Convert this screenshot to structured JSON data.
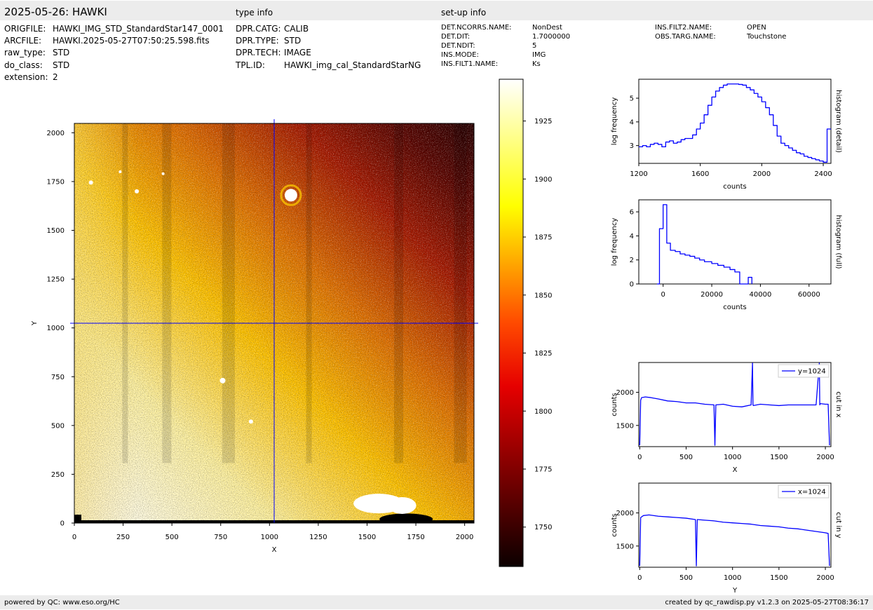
{
  "header": {
    "title": "2025-05-26: HAWKI",
    "type_info_label": "type info",
    "setup_info_label": "set-up info"
  },
  "file_info": [
    {
      "key": "ORIGFILE:",
      "value": "HAWKI_IMG_STD_StandardStar147_0001"
    },
    {
      "key": "ARCFILE:",
      "value": "HAWKI.2025-05-27T07:50:25.598.fits"
    },
    {
      "key": "raw_type:",
      "value": "STD"
    },
    {
      "key": "do_class:",
      "value": "STD"
    },
    {
      "key": "extension:",
      "value": "2"
    }
  ],
  "type_info": [
    {
      "key": "DPR.CATG:",
      "value": "CALIB"
    },
    {
      "key": "DPR.TYPE:",
      "value": "STD"
    },
    {
      "key": "DPR.TECH:",
      "value": "IMAGE"
    },
    {
      "key": "TPL.ID:",
      "value": "HAWKI_img_cal_StandardStarNG"
    }
  ],
  "setup_info_col1": [
    {
      "key": "DET.NCORRS.NAME:",
      "value": "NonDest"
    },
    {
      "key": "DET.DIT:",
      "value": "1.7000000"
    },
    {
      "key": "DET.NDIT:",
      "value": "5"
    },
    {
      "key": "INS.MODE:",
      "value": "IMG"
    },
    {
      "key": "INS.FILT1.NAME:",
      "value": "Ks"
    }
  ],
  "setup_info_col2": [
    {
      "key": "INS.FILT2.NAME:",
      "value": "OPEN"
    },
    {
      "key": "OBS.TARG.NAME:",
      "value": "Touchstone"
    }
  ],
  "footer": {
    "left": "powered by QC: www.eso.org/HC",
    "right": "created by qc_rawdisp.py v1.2.3 on 2025-05-27T08:36:17"
  },
  "chart_data": [
    {
      "type": "heatmap",
      "xlabel": "X",
      "ylabel": "Y",
      "xlim": [
        0,
        2048
      ],
      "ylim": [
        0,
        2048
      ],
      "xticks": [
        0,
        250,
        500,
        750,
        1000,
        1250,
        1500,
        1750,
        2000
      ],
      "yticks": [
        0,
        250,
        500,
        750,
        1000,
        1250,
        1500,
        1750,
        2000
      ],
      "crosshair": {
        "x": 1024,
        "y": 1024
      },
      "colormap": "hot",
      "color_range": [
        1733,
        1943
      ],
      "colorbar_ticks": [
        1750,
        1775,
        1800,
        1825,
        1850,
        1875,
        1900,
        1925
      ]
    },
    {
      "type": "line",
      "style": "step",
      "right_label": "histogram (detail)",
      "xlabel": "counts",
      "ylabel": "log frequency",
      "xlim": [
        1200,
        2450
      ],
      "ylim": [
        2.25,
        5.8
      ],
      "xticks": [
        1200,
        1600,
        2000,
        2400
      ],
      "yticks": [
        3,
        4,
        5
      ],
      "series": [
        {
          "color": "#0000ff",
          "x": [
            1200,
            1225,
            1250,
            1275,
            1300,
            1325,
            1350,
            1375,
            1400,
            1425,
            1450,
            1475,
            1500,
            1525,
            1550,
            1575,
            1600,
            1625,
            1650,
            1675,
            1700,
            1725,
            1750,
            1775,
            1800,
            1825,
            1850,
            1875,
            1900,
            1925,
            1950,
            1975,
            2000,
            2025,
            2050,
            2075,
            2100,
            2125,
            2150,
            2175,
            2200,
            2225,
            2250,
            2275,
            2300,
            2325,
            2350,
            2375,
            2400,
            2425,
            2450
          ],
          "y": [
            2.95,
            3.0,
            2.95,
            3.05,
            3.1,
            3.05,
            2.95,
            3.15,
            3.2,
            3.1,
            3.15,
            3.25,
            3.3,
            3.3,
            3.45,
            3.7,
            3.95,
            4.3,
            4.7,
            5.05,
            5.3,
            5.45,
            5.55,
            5.6,
            5.6,
            5.6,
            5.58,
            5.55,
            5.45,
            5.35,
            5.2,
            5.05,
            4.85,
            4.6,
            4.3,
            3.85,
            3.4,
            3.1,
            3.0,
            2.9,
            2.8,
            2.7,
            2.65,
            2.55,
            2.5,
            2.45,
            2.4,
            2.35,
            2.3,
            3.7,
            3.7
          ]
        }
      ]
    },
    {
      "type": "line",
      "style": "step",
      "right_label": "histogram (full)",
      "xlabel": "counts",
      "ylabel": "log frequency",
      "xlim": [
        -10000,
        69000
      ],
      "ylim": [
        0,
        7
      ],
      "xticks": [
        0,
        20000,
        40000,
        60000
      ],
      "yticks": [
        0,
        2,
        4,
        6
      ],
      "series": [
        {
          "color": "#0000ff",
          "x": [
            -2500,
            -1500,
            0,
            1500,
            3000,
            5000,
            7000,
            9000,
            11000,
            13000,
            15000,
            17000,
            20000,
            22500,
            25000,
            27500,
            29500,
            31500,
            35000,
            36500
          ],
          "y": [
            0,
            4.6,
            6.6,
            3.4,
            2.8,
            2.7,
            2.5,
            2.4,
            2.3,
            2.15,
            2.0,
            1.85,
            1.7,
            1.55,
            1.4,
            1.2,
            1.0,
            0,
            0.55,
            0
          ]
        }
      ]
    },
    {
      "type": "line",
      "right_label": "cut in x",
      "xlabel": "X",
      "ylabel": "counts",
      "xlim": [
        -10,
        2060
      ],
      "ylim": [
        1180,
        2450
      ],
      "xticks": [
        0,
        500,
        1000,
        1500,
        2000
      ],
      "yticks": [
        1500,
        2000
      ],
      "legend": "y=1024",
      "legend_position": "top-right",
      "series": [
        {
          "name": "y=1024",
          "color": "#0000ff",
          "x": [
            0,
            10,
            20,
            60,
            120,
            200,
            300,
            400,
            500,
            600,
            700,
            800,
            810,
            820,
            900,
            1000,
            1100,
            1200,
            1215,
            1220,
            1225,
            1300,
            1400,
            1500,
            1600,
            1700,
            1800,
            1900,
            1935,
            1940,
            1945,
            2000,
            2030,
            2045
          ],
          "y": [
            1200,
            1880,
            1920,
            1930,
            1920,
            1900,
            1870,
            1860,
            1840,
            1840,
            1820,
            1810,
            1200,
            1810,
            1820,
            1790,
            1780,
            1810,
            2440,
            1810,
            1800,
            1820,
            1810,
            1800,
            1810,
            1810,
            1810,
            1810,
            2440,
            1810,
            1830,
            1820,
            1820,
            1200
          ]
        }
      ]
    },
    {
      "type": "line",
      "right_label": "cut in y",
      "xlabel": "Y",
      "ylabel": "counts",
      "xlim": [
        -10,
        2060
      ],
      "ylim": [
        1180,
        2450
      ],
      "xticks": [
        0,
        500,
        1000,
        1500,
        2000
      ],
      "yticks": [
        1500,
        2000
      ],
      "legend": "x=1024",
      "legend_position": "top-right",
      "series": [
        {
          "name": "x=1024",
          "color": "#0000ff",
          "x": [
            0,
            10,
            40,
            100,
            200,
            300,
            400,
            500,
            600,
            610,
            620,
            700,
            800,
            900,
            1000,
            1100,
            1200,
            1300,
            1400,
            1500,
            1600,
            1700,
            1800,
            1900,
            2000,
            2030,
            2045
          ],
          "y": [
            1200,
            1930,
            1960,
            1970,
            1950,
            1940,
            1930,
            1920,
            1900,
            1200,
            1900,
            1890,
            1880,
            1860,
            1850,
            1840,
            1830,
            1810,
            1800,
            1790,
            1770,
            1760,
            1740,
            1720,
            1700,
            1690,
            1200
          ]
        }
      ]
    }
  ]
}
